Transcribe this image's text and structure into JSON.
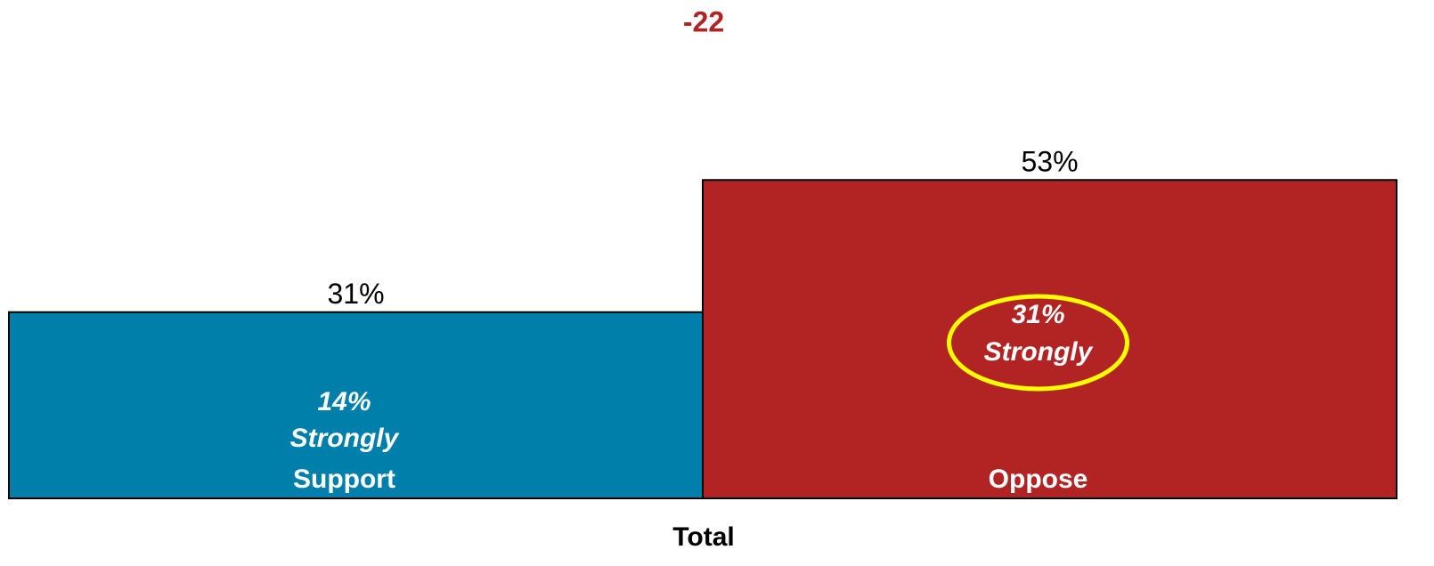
{
  "chart_data": {
    "type": "bar",
    "title": "-22",
    "categories": [
      "Total"
    ],
    "series": [
      {
        "name": "Support",
        "color": "#007fab",
        "values": [
          31
        ],
        "value_labels": [
          "31%"
        ],
        "strongly_values": [
          14
        ],
        "strongly_labels": [
          "14%"
        ]
      },
      {
        "name": "Oppose",
        "color": "#b22423",
        "values": [
          53
        ],
        "value_labels": [
          "53%"
        ],
        "strongly_values": [
          31
        ],
        "strongly_labels": [
          "31%"
        ]
      }
    ],
    "strongly_text": "Strongly"
  }
}
